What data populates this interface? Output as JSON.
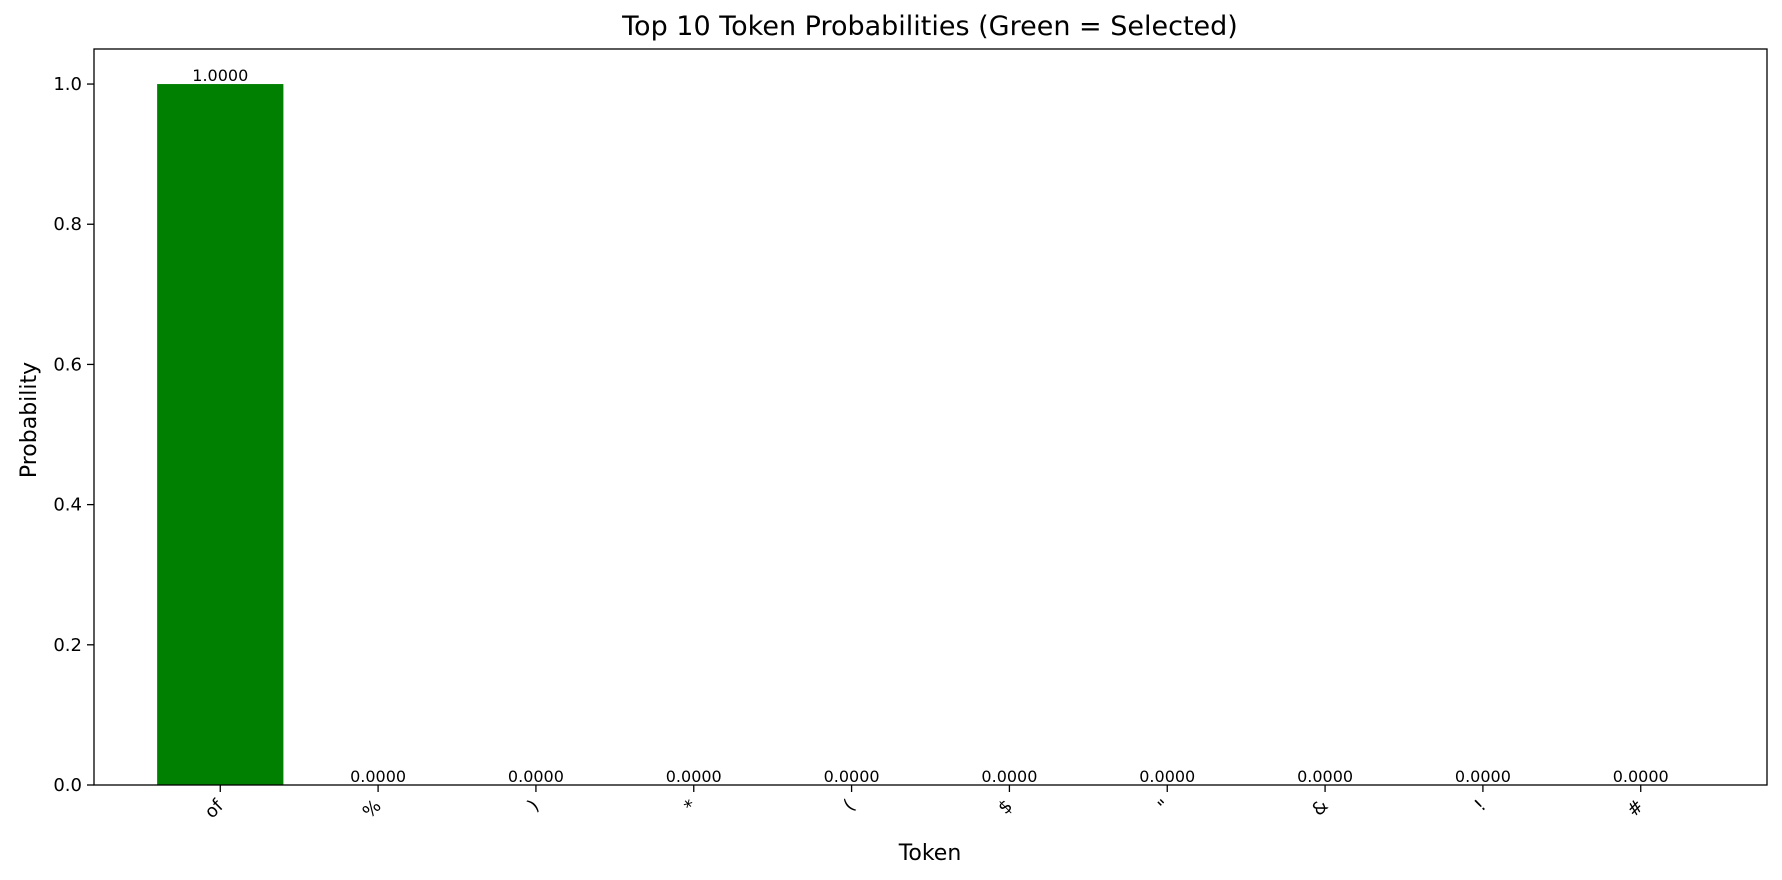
{
  "chart_data": {
    "type": "bar",
    "title": "Top 10 Token Probabilities (Green = Selected)",
    "xlabel": "Token",
    "ylabel": "Probability",
    "categories": [
      "of",
      "%",
      ")",
      "*",
      "(",
      "$",
      "\"",
      "&",
      "!",
      "#"
    ],
    "values": [
      1.0,
      0.0,
      0.0,
      0.0,
      0.0,
      0.0,
      0.0,
      0.0,
      0.0,
      0.0
    ],
    "value_labels": [
      "1.0000",
      "0.0000",
      "0.0000",
      "0.0000",
      "0.0000",
      "0.0000",
      "0.0000",
      "0.0000",
      "0.0000",
      "0.0000"
    ],
    "selected_index": 0,
    "selected_color": "#008000",
    "ylim": [
      0,
      1.05
    ],
    "yticks": [
      0.0,
      0.2,
      0.4,
      0.6,
      0.8,
      1.0
    ],
    "ytick_labels": [
      "0.0",
      "0.2",
      "0.4",
      "0.6",
      "0.8",
      "1.0"
    ],
    "grid": false,
    "legend": "none"
  }
}
